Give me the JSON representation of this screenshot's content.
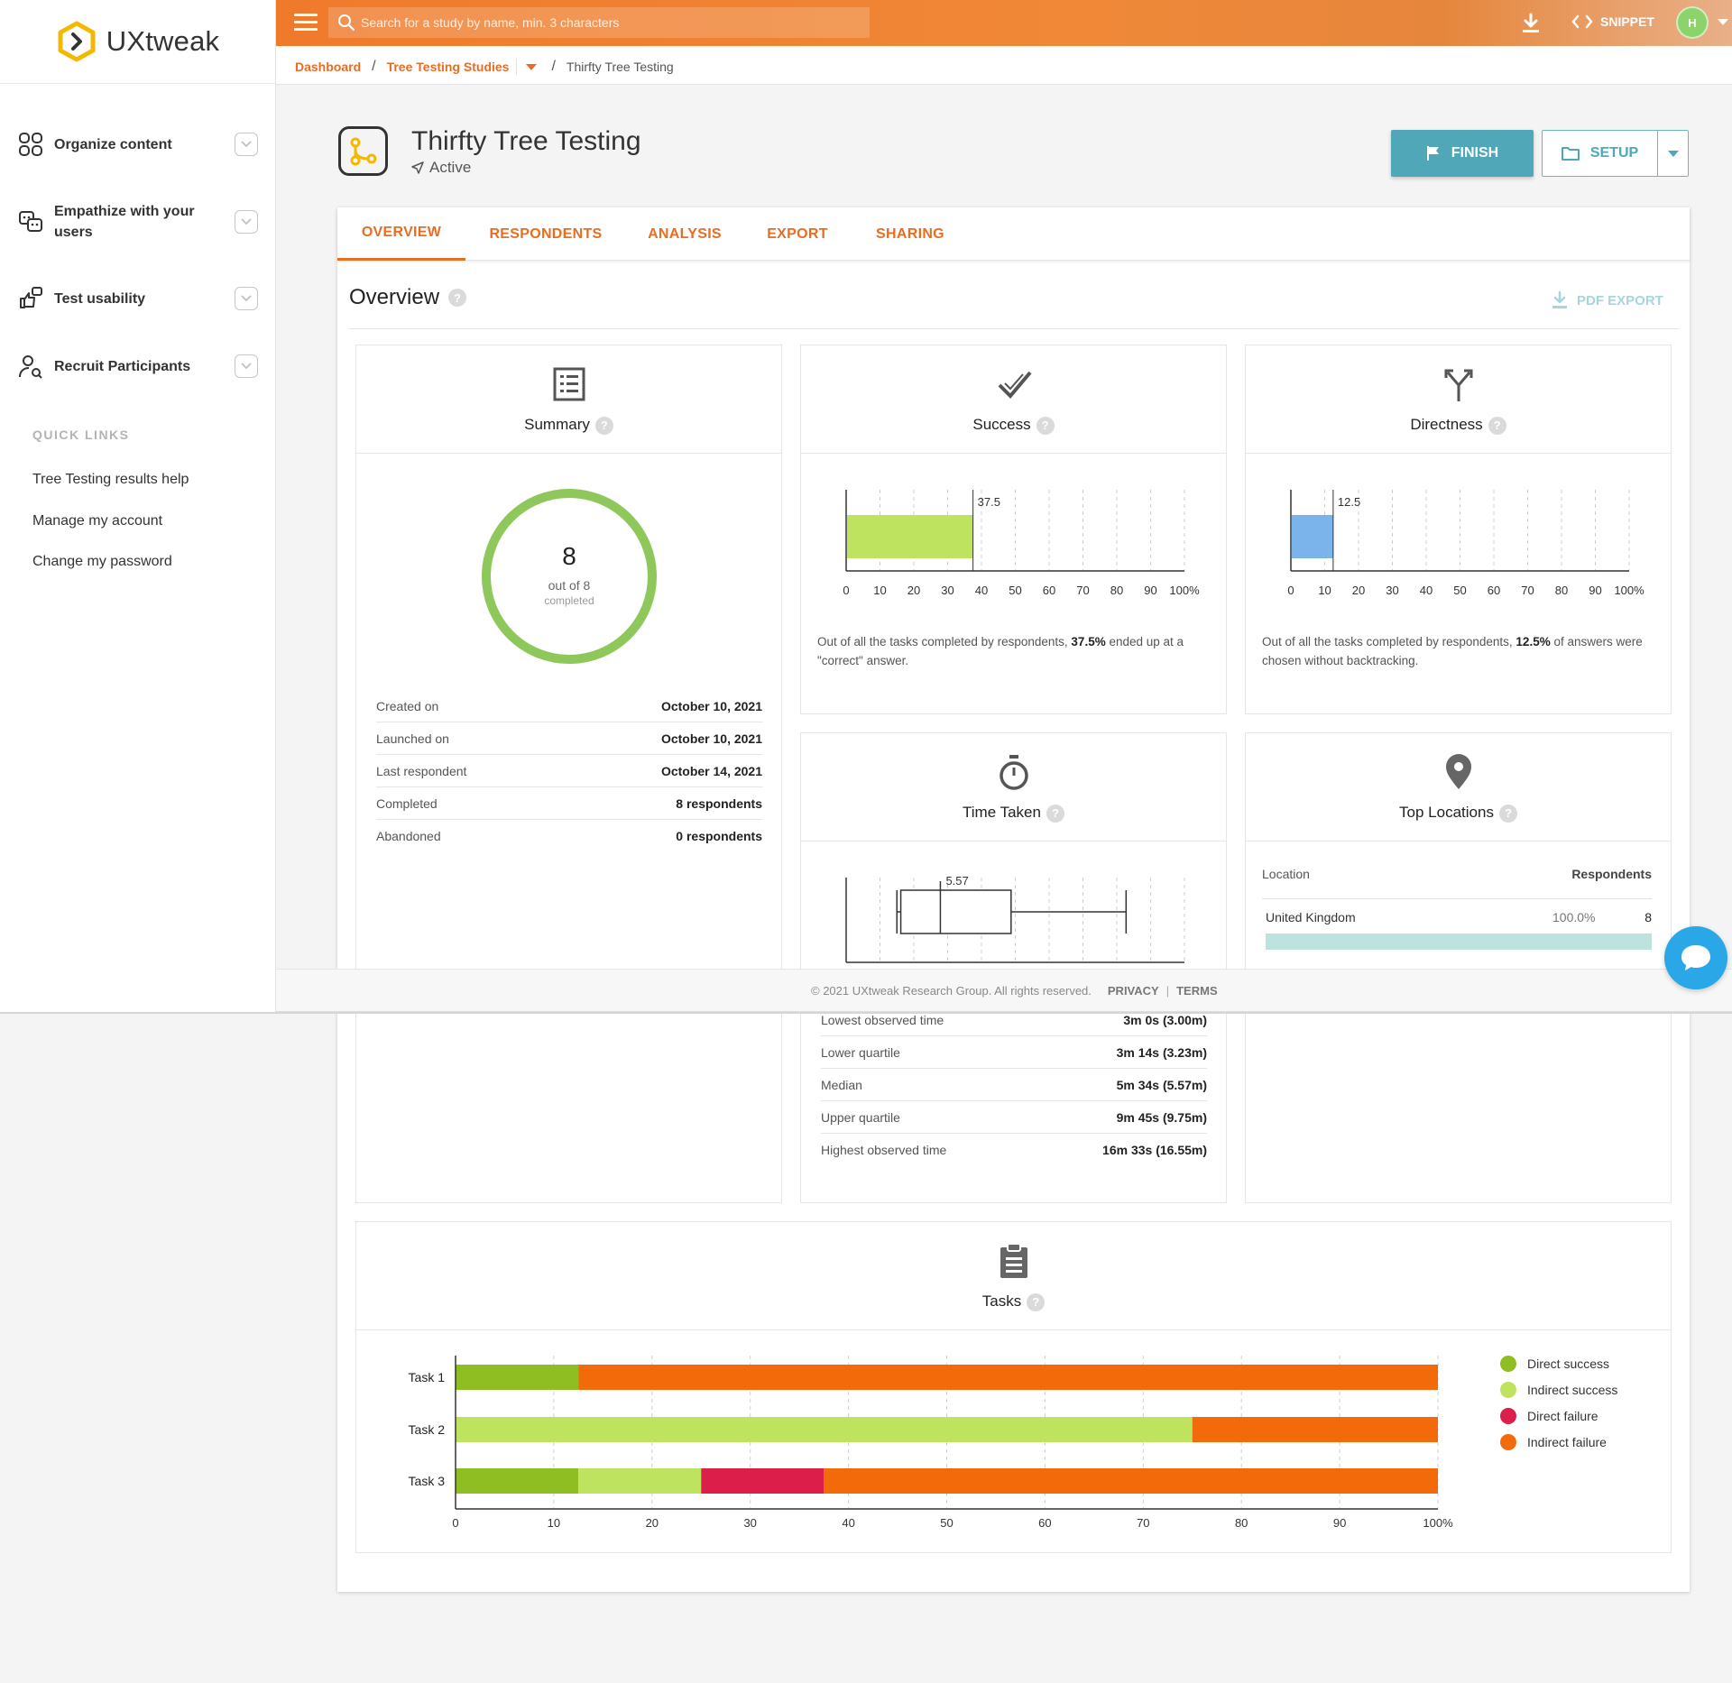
{
  "logo": {
    "brand": "UXtweak"
  },
  "search": {
    "placeholder": "Search for a study by name, min. 3 characters"
  },
  "topbar": {
    "snippet_label": "SNIPPET",
    "avatar_initial": "H"
  },
  "breadcrumb": {
    "dashboard": "Dashboard",
    "studies": "Tree Testing Studies",
    "current": "Thirfty Tree Testing"
  },
  "sidebar": {
    "items": [
      {
        "label": "Organize content"
      },
      {
        "label": "Empathize with your users"
      },
      {
        "label": "Test usability"
      },
      {
        "label": "Recruit Participants"
      }
    ],
    "quick_links_title": "QUICK LINKS",
    "quick_links": [
      "Tree Testing results help",
      "Manage my account",
      "Change my password"
    ]
  },
  "study": {
    "title": "Thirfty Tree Testing",
    "status": "Active",
    "finish_label": "FINISH",
    "setup_label": "SETUP"
  },
  "tabs": [
    "OVERVIEW",
    "RESPONDENTS",
    "ANALYSIS",
    "EXPORT",
    "SHARING"
  ],
  "overview": {
    "title": "Overview",
    "pdf_export": "PDF EXPORT",
    "help": "?"
  },
  "summary": {
    "title": "Summary",
    "completed_count": "8",
    "out_of": "out of 8",
    "completed_label": "completed",
    "completed_fraction": 1.0,
    "rows": [
      {
        "k": "Created on",
        "v": "October 10, 2021"
      },
      {
        "k": "Launched on",
        "v": "October 10, 2021"
      },
      {
        "k": "Last respondent",
        "v": "October 14, 2021"
      },
      {
        "k": "Completed",
        "v": "8 respondents"
      },
      {
        "k": "Abandoned",
        "v": "0 respondents"
      }
    ]
  },
  "success": {
    "title": "Success",
    "desc_pre": "Out of all the tasks completed by respondents,",
    "desc_bold": "37.5%",
    "desc_post": "ended up at a \"correct\" answer."
  },
  "directness": {
    "title": "Directness",
    "desc_pre": "Out of all the tasks completed by respondents,",
    "desc_bold": "12.5%",
    "desc_post": "of answers were chosen without backtracking."
  },
  "time_taken": {
    "title": "Time Taken",
    "median_label": "5.57",
    "rows": [
      {
        "k": "Lowest observed time",
        "v": "3m 0s (3.00m)"
      },
      {
        "k": "Lower quartile",
        "v": "3m 14s (3.23m)"
      },
      {
        "k": "Median",
        "v": "5m 34s (5.57m)"
      },
      {
        "k": "Upper quartile",
        "v": "9m 45s (9.75m)"
      },
      {
        "k": "Highest observed time",
        "v": "16m 33s (16.55m)"
      }
    ]
  },
  "top_locations": {
    "title": "Top Locations",
    "col_location": "Location",
    "col_respondents": "Respondents",
    "rows": [
      {
        "name": "United Kingdom",
        "pct": "100.0%",
        "count": "8",
        "fraction": 1.0
      }
    ]
  },
  "tasks": {
    "title": "Tasks"
  },
  "footer": {
    "copyright": "© 2021 UXtweak Research Group. All rights reserved.",
    "privacy": "PRIVACY",
    "terms": "TERMS"
  },
  "colors": {
    "accent": "#e86d22",
    "teal": "#4fa7b8",
    "success_bar": "#bde35f",
    "directness_bar": "#7ab4ea",
    "direct_success": "#8fbe22",
    "indirect_success": "#bde35f",
    "direct_failure": "#dc1e4a",
    "indirect_failure": "#f36a0a"
  },
  "chart_data": [
    {
      "type": "bar",
      "orientation": "horizontal",
      "categories": [
        ""
      ],
      "values": [
        37.5
      ],
      "data_labels": [
        "37.5"
      ],
      "xlim": [
        0,
        100
      ],
      "x_ticks": [
        "0",
        "10",
        "20",
        "30",
        "40",
        "50",
        "60",
        "70",
        "80",
        "90",
        "100%"
      ],
      "grid": true
    },
    {
      "type": "bar",
      "orientation": "horizontal",
      "categories": [
        ""
      ],
      "values": [
        12.5
      ],
      "data_labels": [
        "12.5"
      ],
      "xlim": [
        0,
        100
      ],
      "x_ticks": [
        "0",
        "10",
        "20",
        "30",
        "40",
        "50",
        "60",
        "70",
        "80",
        "90",
        "100%"
      ],
      "grid": true
    },
    {
      "type": "box",
      "min": 3.0,
      "q1": 3.23,
      "median": 5.57,
      "q3": 9.75,
      "max": 16.55,
      "xlim": [
        0,
        20
      ],
      "grid": true
    },
    {
      "type": "bar",
      "orientation": "horizontal",
      "stacked": true,
      "categories": [
        "Task 1",
        "Task 2",
        "Task 3"
      ],
      "series": [
        {
          "name": "Direct success",
          "values": [
            12.5,
            0,
            12.5
          ]
        },
        {
          "name": "Indirect success",
          "values": [
            0,
            75,
            12.5
          ]
        },
        {
          "name": "Direct failure",
          "values": [
            0,
            0,
            12.5
          ]
        },
        {
          "name": "Indirect failure",
          "values": [
            87.5,
            25,
            62.5
          ]
        }
      ],
      "xlim": [
        0,
        100
      ],
      "x_ticks": [
        "0",
        "10",
        "20",
        "30",
        "40",
        "50",
        "60",
        "70",
        "80",
        "90",
        "100%"
      ],
      "legend": "right",
      "grid": true
    }
  ]
}
